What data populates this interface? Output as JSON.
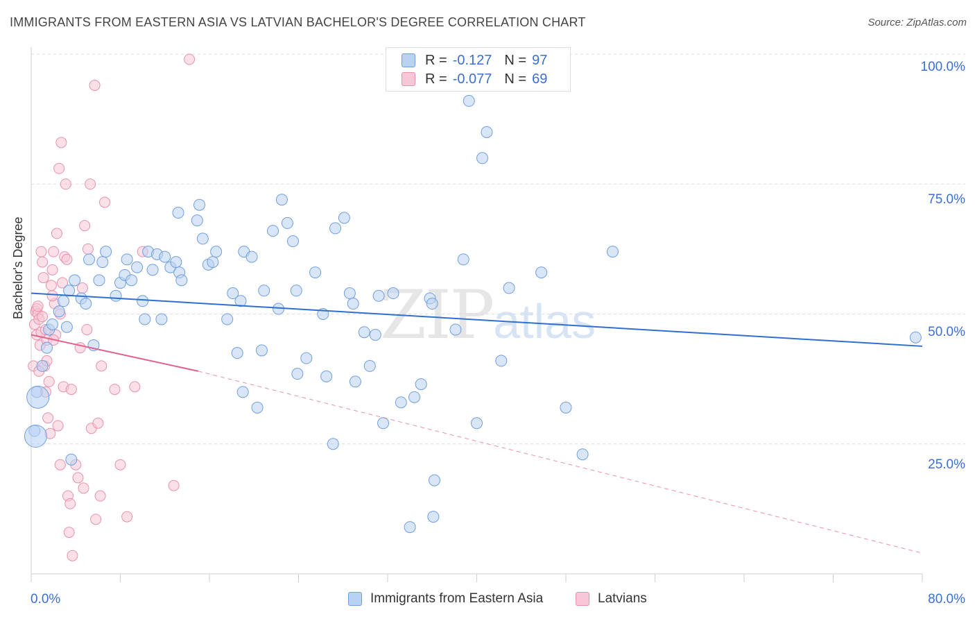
{
  "header": {
    "title": "IMMIGRANTS FROM EASTERN ASIA VS LATVIAN BACHELOR'S DEGREE CORRELATION CHART",
    "source": "Source: ZipAtlas.com"
  },
  "watermark": {
    "zip": "ZIP",
    "atlas": "atlas"
  },
  "legend": {
    "series1": {
      "r_label": "R =",
      "r_value": "-0.127",
      "n_label": "N =",
      "n_value": "97"
    },
    "series2": {
      "r_label": "R =",
      "r_value": "-0.077",
      "n_label": "N =",
      "n_value": "69"
    }
  },
  "colors": {
    "blue_fill": "#b9d2f3",
    "blue_stroke": "#6f9ee0",
    "blue_line": "#2f6fd0",
    "pink_fill": "#f8c6d6",
    "pink_stroke": "#e792ad",
    "pink_line": "#e0628c",
    "axis_text": "#3b6fd4"
  },
  "chart_data": {
    "type": "scatter",
    "xlabel": "",
    "ylabel": "Bachelor's Degree",
    "xlim": [
      0,
      80
    ],
    "ylim": [
      0,
      100
    ],
    "x_tick_labels": [
      "0.0%",
      "80.0%"
    ],
    "y_tick_labels": [
      "100.0%",
      "75.0%",
      "50.0%",
      "25.0%"
    ],
    "y_ticks": [
      100,
      75,
      50,
      25
    ],
    "grid": true,
    "legend_position": "top-center",
    "series": [
      {
        "name": "Immigrants from Eastern Asia",
        "trend": {
          "x": [
            0,
            80
          ],
          "y": [
            54.0,
            43.8
          ]
        },
        "points": [
          [
            0.3,
            27.5
          ],
          [
            0.5,
            35.0
          ],
          [
            1.0,
            40.0
          ],
          [
            1.4,
            43.5
          ],
          [
            1.6,
            47.0
          ],
          [
            1.9,
            48.0
          ],
          [
            2.5,
            50.5
          ],
          [
            2.9,
            52.5
          ],
          [
            3.2,
            47.5
          ],
          [
            3.4,
            54.5
          ],
          [
            3.9,
            56.5
          ],
          [
            4.5,
            53.0
          ],
          [
            4.9,
            52.0
          ],
          [
            5.2,
            60.5
          ],
          [
            5.6,
            44.0
          ],
          [
            6.1,
            56.5
          ],
          [
            6.4,
            60.0
          ],
          [
            6.7,
            62.0
          ],
          [
            7.6,
            53.5
          ],
          [
            8.0,
            56.0
          ],
          [
            8.4,
            57.5
          ],
          [
            8.6,
            60.5
          ],
          [
            9.0,
            56.5
          ],
          [
            9.5,
            59.0
          ],
          [
            10.0,
            52.5
          ],
          [
            10.2,
            49.0
          ],
          [
            10.5,
            62.0
          ],
          [
            10.9,
            58.5
          ],
          [
            11.3,
            61.5
          ],
          [
            11.7,
            49.0
          ],
          [
            12.0,
            61.0
          ],
          [
            12.5,
            59.0
          ],
          [
            13.0,
            60.0
          ],
          [
            13.3,
            58.0
          ],
          [
            13.5,
            56.5
          ],
          [
            13.2,
            69.5
          ],
          [
            14.9,
            68.0
          ],
          [
            15.1,
            71.0
          ],
          [
            15.4,
            64.5
          ],
          [
            15.9,
            59.5
          ],
          [
            16.3,
            60.0
          ],
          [
            16.6,
            62.0
          ],
          [
            17.6,
            49.0
          ],
          [
            18.1,
            54.0
          ],
          [
            18.8,
            52.5
          ],
          [
            18.5,
            42.5
          ],
          [
            19.1,
            62.0
          ],
          [
            19.8,
            61.0
          ],
          [
            19.0,
            35.0
          ],
          [
            20.3,
            32.0
          ],
          [
            20.7,
            43.0
          ],
          [
            20.9,
            54.5
          ],
          [
            21.7,
            66.0
          ],
          [
            22.2,
            51.0
          ],
          [
            22.5,
            72.0
          ],
          [
            23.0,
            67.5
          ],
          [
            23.5,
            64.0
          ],
          [
            23.8,
            54.5
          ],
          [
            23.9,
            38.5
          ],
          [
            24.7,
            41.5
          ],
          [
            25.5,
            58.0
          ],
          [
            26.2,
            50.0
          ],
          [
            26.5,
            38.0
          ],
          [
            27.1,
            25.0
          ],
          [
            27.3,
            66.5
          ],
          [
            28.1,
            68.5
          ],
          [
            28.6,
            54.0
          ],
          [
            28.9,
            52.0
          ],
          [
            29.1,
            37.0
          ],
          [
            29.9,
            46.5
          ],
          [
            30.9,
            46.0
          ],
          [
            30.4,
            40.0
          ],
          [
            31.2,
            53.5
          ],
          [
            31.6,
            29.0
          ],
          [
            32.5,
            54.0
          ],
          [
            33.2,
            33.0
          ],
          [
            34.4,
            34.0
          ],
          [
            35.0,
            36.5
          ],
          [
            34.0,
            9.0
          ],
          [
            35.8,
            53.0
          ],
          [
            36.1,
            11.0
          ],
          [
            36.0,
            52.0
          ],
          [
            36.2,
            18.0
          ],
          [
            38.1,
            47.0
          ],
          [
            38.8,
            60.5
          ],
          [
            39.3,
            91.0
          ],
          [
            40.0,
            29.0
          ],
          [
            40.5,
            80.0
          ],
          [
            40.9,
            85.0
          ],
          [
            42.2,
            41.0
          ],
          [
            42.9,
            55.0
          ],
          [
            45.8,
            58.0
          ],
          [
            48.0,
            32.0
          ],
          [
            49.5,
            23.0
          ],
          [
            52.2,
            62.0
          ],
          [
            79.4,
            45.5
          ],
          [
            3.6,
            22.0
          ]
        ],
        "big_points": [
          [
            0.4,
            26.5
          ],
          [
            0.6,
            34.0
          ]
        ]
      },
      {
        "name": "Latvians",
        "trend_solid": {
          "x": [
            0,
            15
          ],
          "y": [
            46.0,
            39.0
          ]
        },
        "trend_dashed": {
          "x": [
            15,
            80
          ],
          "y": [
            39.0,
            4.0
          ]
        },
        "points": [
          [
            0.2,
            40.0
          ],
          [
            0.3,
            48.0
          ],
          [
            0.4,
            50.5
          ],
          [
            0.5,
            46.0
          ],
          [
            0.5,
            51.0
          ],
          [
            0.6,
            50.0
          ],
          [
            0.7,
            49.0
          ],
          [
            0.8,
            44.0
          ],
          [
            0.9,
            62.0
          ],
          [
            1.0,
            60.0
          ],
          [
            1.1,
            57.0
          ],
          [
            1.2,
            40.0
          ],
          [
            1.3,
            35.0
          ],
          [
            1.4,
            45.0
          ],
          [
            1.5,
            30.0
          ],
          [
            1.6,
            37.0
          ],
          [
            1.7,
            27.0
          ],
          [
            1.8,
            55.5
          ],
          [
            1.9,
            58.5
          ],
          [
            2.0,
            62.0
          ],
          [
            2.1,
            52.0
          ],
          [
            2.2,
            46.0
          ],
          [
            2.3,
            65.5
          ],
          [
            2.4,
            28.5
          ],
          [
            2.5,
            78.0
          ],
          [
            2.6,
            21.0
          ],
          [
            2.7,
            83.0
          ],
          [
            2.8,
            56.0
          ],
          [
            2.9,
            36.0
          ],
          [
            3.0,
            61.0
          ],
          [
            3.1,
            75.0
          ],
          [
            3.2,
            60.5
          ],
          [
            3.3,
            15.0
          ],
          [
            3.4,
            8.0
          ],
          [
            3.5,
            13.5
          ],
          [
            3.6,
            35.5
          ],
          [
            3.7,
            3.5
          ],
          [
            4.0,
            21.0
          ],
          [
            4.2,
            18.5
          ],
          [
            4.4,
            43.5
          ],
          [
            4.6,
            55.0
          ],
          [
            4.7,
            16.5
          ],
          [
            4.8,
            67.0
          ],
          [
            5.0,
            47.0
          ],
          [
            5.1,
            62.5
          ],
          [
            5.3,
            75.0
          ],
          [
            5.4,
            28.0
          ],
          [
            5.7,
            94.0
          ],
          [
            5.8,
            10.5
          ],
          [
            6.0,
            29.0
          ],
          [
            6.2,
            15.0
          ],
          [
            6.3,
            40.0
          ],
          [
            6.6,
            71.5
          ],
          [
            7.5,
            35.5
          ],
          [
            8.0,
            21.0
          ],
          [
            8.6,
            11.0
          ],
          [
            9.3,
            36.0
          ],
          [
            10.0,
            62.0
          ],
          [
            12.8,
            17.0
          ],
          [
            14.2,
            99.0
          ],
          [
            1.0,
            49.5
          ],
          [
            0.9,
            46.5
          ],
          [
            1.3,
            47.0
          ],
          [
            1.9,
            53.5
          ],
          [
            0.6,
            51.5
          ],
          [
            1.4,
            41.0
          ],
          [
            0.7,
            39.0
          ],
          [
            2.0,
            45.0
          ],
          [
            2.6,
            50.0
          ]
        ]
      }
    ]
  },
  "bottom_legend": {
    "item1": "Immigrants from Eastern Asia",
    "item2": "Latvians"
  }
}
